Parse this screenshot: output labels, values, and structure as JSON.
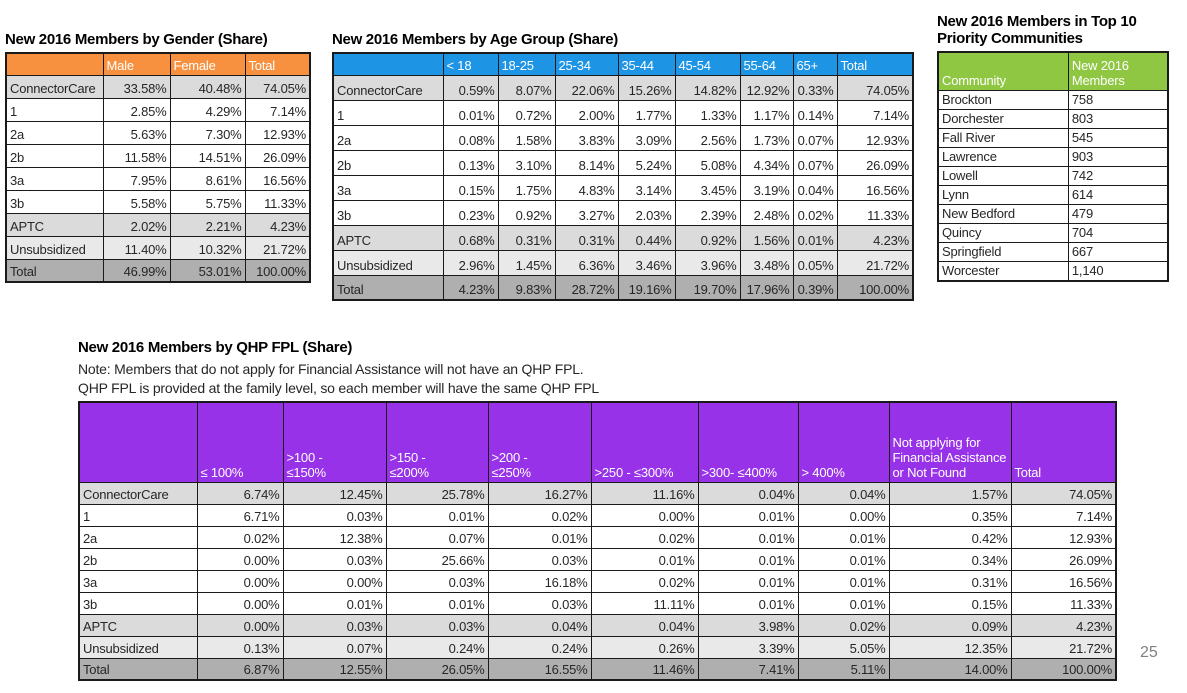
{
  "page_number": "25",
  "tables": {
    "gender": {
      "title": "New 2016 Members by Gender (Share)",
      "header_color": "#F79140",
      "columns": [
        "",
        "Male",
        "Female",
        "Total"
      ],
      "rows": [
        {
          "label": "ConnectorCare",
          "values": [
            "33.58%",
            "40.48%",
            "74.05%"
          ]
        },
        {
          "label": "1",
          "values": [
            "2.85%",
            "4.29%",
            "7.14%"
          ]
        },
        {
          "label": "2a",
          "values": [
            "5.63%",
            "7.30%",
            "12.93%"
          ]
        },
        {
          "label": "2b",
          "values": [
            "11.58%",
            "14.51%",
            "26.09%"
          ]
        },
        {
          "label": "3a",
          "values": [
            "7.95%",
            "8.61%",
            "16.56%"
          ]
        },
        {
          "label": "3b",
          "values": [
            "5.58%",
            "5.75%",
            "11.33%"
          ]
        },
        {
          "label": "APTC",
          "values": [
            "2.02%",
            "2.21%",
            "4.23%"
          ]
        },
        {
          "label": "Unsubsidized",
          "values": [
            "11.40%",
            "10.32%",
            "21.72%"
          ]
        },
        {
          "label": "Total",
          "values": [
            "46.99%",
            "53.01%",
            "100.00%"
          ]
        }
      ]
    },
    "age": {
      "title": "New 2016 Members by Age Group (Share)",
      "header_color": "#1E94E4",
      "columns": [
        "",
        "< 18",
        "18-25",
        "25-34",
        "35-44",
        "45-54",
        "55-64",
        "65+",
        "Total"
      ],
      "rows": [
        {
          "label": "ConnectorCare",
          "values": [
            "0.59%",
            "8.07%",
            "22.06%",
            "15.26%",
            "14.82%",
            "12.92%",
            "0.33%",
            "74.05%"
          ]
        },
        {
          "label": "1",
          "values": [
            "0.01%",
            "0.72%",
            "2.00%",
            "1.77%",
            "1.33%",
            "1.17%",
            "0.14%",
            "7.14%"
          ]
        },
        {
          "label": "2a",
          "values": [
            "0.08%",
            "1.58%",
            "3.83%",
            "3.09%",
            "2.56%",
            "1.73%",
            "0.07%",
            "12.93%"
          ]
        },
        {
          "label": "2b",
          "values": [
            "0.13%",
            "3.10%",
            "8.14%",
            "5.24%",
            "5.08%",
            "4.34%",
            "0.07%",
            "26.09%"
          ]
        },
        {
          "label": "3a",
          "values": [
            "0.15%",
            "1.75%",
            "4.83%",
            "3.14%",
            "3.45%",
            "3.19%",
            "0.04%",
            "16.56%"
          ]
        },
        {
          "label": "3b",
          "values": [
            "0.23%",
            "0.92%",
            "3.27%",
            "2.03%",
            "2.39%",
            "2.48%",
            "0.02%",
            "11.33%"
          ]
        },
        {
          "label": "APTC",
          "values": [
            "0.68%",
            "0.31%",
            "0.31%",
            "0.44%",
            "0.92%",
            "1.56%",
            "0.01%",
            "4.23%"
          ]
        },
        {
          "label": "Unsubsidized",
          "values": [
            "2.96%",
            "1.45%",
            "6.36%",
            "3.46%",
            "3.96%",
            "3.48%",
            "0.05%",
            "21.72%"
          ]
        },
        {
          "label": "Total",
          "values": [
            "4.23%",
            "9.83%",
            "28.72%",
            "19.16%",
            "19.70%",
            "17.96%",
            "0.39%",
            "100.00%"
          ]
        }
      ]
    },
    "communities": {
      "title": "New 2016 Members in Top 10 Priority Communities",
      "header_color": "#8FC743",
      "columns": [
        "Community",
        "New 2016 Members"
      ],
      "rows": [
        {
          "label": "Brockton",
          "values": [
            "758"
          ]
        },
        {
          "label": "Dorchester",
          "values": [
            "803"
          ]
        },
        {
          "label": "Fall River",
          "values": [
            "545"
          ]
        },
        {
          "label": "Lawrence",
          "values": [
            "903"
          ]
        },
        {
          "label": "Lowell",
          "values": [
            "742"
          ]
        },
        {
          "label": "Lynn",
          "values": [
            "614"
          ]
        },
        {
          "label": "New Bedford",
          "values": [
            "479"
          ]
        },
        {
          "label": "Quincy",
          "values": [
            "704"
          ]
        },
        {
          "label": "Springfield",
          "values": [
            "667"
          ]
        },
        {
          "label": "Worcester",
          "values": [
            "1,140"
          ]
        }
      ]
    },
    "fpl": {
      "title": "New 2016 Members by QHP FPL (Share)",
      "notes": [
        "Note: Members that do not apply for Financial Assistance will not have an QHP FPL.",
        "QHP FPL is provided at the family level, so each member will have the same QHP FPL"
      ],
      "header_color": "#9832E8",
      "columns": [
        "",
        "≤ 100%",
        ">100 -\n≤150%",
        ">150 -\n≤200%",
        ">200 -\n≤250%",
        ">250 - ≤300%",
        ">300- ≤400%",
        "> 400%",
        "Not applying for Financial Assistance or Not Found",
        "Total"
      ],
      "rows": [
        {
          "label": "ConnectorCare",
          "values": [
            "6.74%",
            "12.45%",
            "25.78%",
            "16.27%",
            "11.16%",
            "0.04%",
            "0.04%",
            "1.57%",
            "74.05%"
          ]
        },
        {
          "label": "1",
          "values": [
            "6.71%",
            "0.03%",
            "0.01%",
            "0.02%",
            "0.00%",
            "0.01%",
            "0.00%",
            "0.35%",
            "7.14%"
          ]
        },
        {
          "label": "2a",
          "values": [
            "0.02%",
            "12.38%",
            "0.07%",
            "0.01%",
            "0.02%",
            "0.01%",
            "0.01%",
            "0.42%",
            "12.93%"
          ]
        },
        {
          "label": "2b",
          "values": [
            "0.00%",
            "0.03%",
            "25.66%",
            "0.03%",
            "0.01%",
            "0.01%",
            "0.01%",
            "0.34%",
            "26.09%"
          ]
        },
        {
          "label": "3a",
          "values": [
            "0.00%",
            "0.00%",
            "0.03%",
            "16.18%",
            "0.02%",
            "0.01%",
            "0.01%",
            "0.31%",
            "16.56%"
          ]
        },
        {
          "label": "3b",
          "values": [
            "0.00%",
            "0.01%",
            "0.01%",
            "0.03%",
            "11.11%",
            "0.01%",
            "0.01%",
            "0.15%",
            "11.33%"
          ]
        },
        {
          "label": "APTC",
          "values": [
            "0.00%",
            "0.03%",
            "0.03%",
            "0.04%",
            "0.04%",
            "3.98%",
            "0.02%",
            "0.09%",
            "4.23%"
          ]
        },
        {
          "label": "Unsubsidized",
          "values": [
            "0.13%",
            "0.07%",
            "0.24%",
            "0.24%",
            "0.26%",
            "3.39%",
            "5.05%",
            "12.35%",
            "21.72%"
          ]
        },
        {
          "label": "Total",
          "values": [
            "6.87%",
            "12.55%",
            "26.05%",
            "16.55%",
            "11.46%",
            "7.41%",
            "5.11%",
            "14.00%",
            "100.00%"
          ]
        }
      ]
    }
  }
}
